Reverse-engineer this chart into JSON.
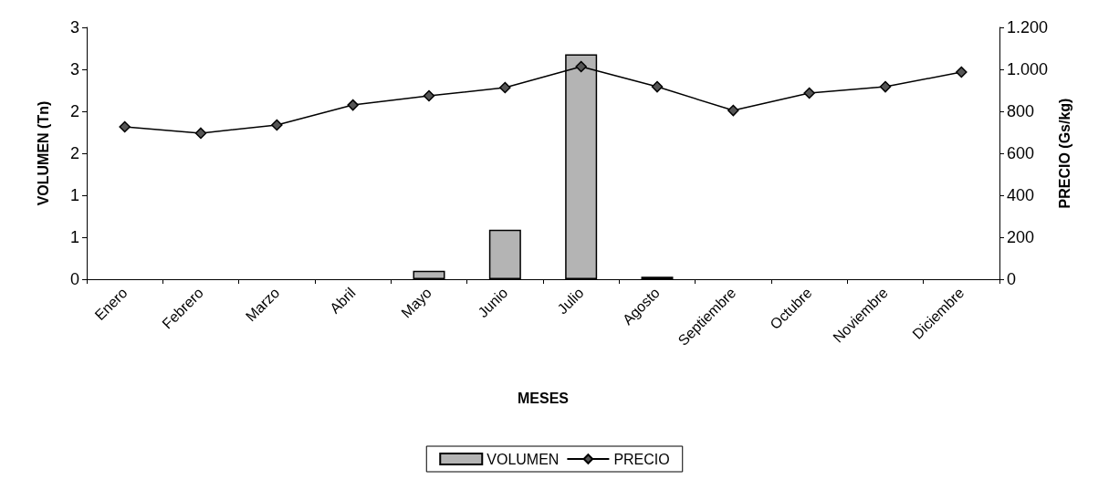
{
  "chart_data": {
    "type": "bar",
    "xlabel": "MESES",
    "ylabel": "VOLUMEN (Tn)",
    "y2label": "PRECIO (Gs/kg)",
    "categories": [
      "Enero",
      "Febrero",
      "Marzo",
      "Abril",
      "Mayo",
      "Junio",
      "Julio",
      "Agosto",
      "Septiembre",
      "Octubre",
      "Noviembre",
      "Diciembre"
    ],
    "series": [
      {
        "name": "VOLUMEN",
        "color": "#b4b4b4",
        "values": [
          0,
          0,
          0,
          0,
          0.1,
          0.59,
          2.68,
          0.03,
          0,
          0,
          0,
          0
        ]
      },
      {
        "name": "PRECIO",
        "type": "line",
        "axis": "y2",
        "color": "#000000",
        "marker": "diamond",
        "values": [
          726,
          696,
          735,
          830,
          874,
          913,
          1013,
          917,
          804,
          887,
          917,
          987
        ]
      }
    ],
    "ylim": [
      0,
      3
    ],
    "yticks": [
      0,
      {
        "value": 0.5,
        "label": "1"
      },
      1,
      {
        "value": 1.5,
        "label": "2"
      },
      2,
      {
        "value": 2.5,
        "label": "3"
      },
      3
    ],
    "y2lim": [
      0,
      1200
    ],
    "y2ticks": [
      0,
      200,
      400,
      600,
      800,
      {
        "value": 1000,
        "label": "1.000"
      },
      {
        "value": 1200,
        "label": "1.200"
      }
    ],
    "grid": false,
    "legend": "bottom"
  }
}
